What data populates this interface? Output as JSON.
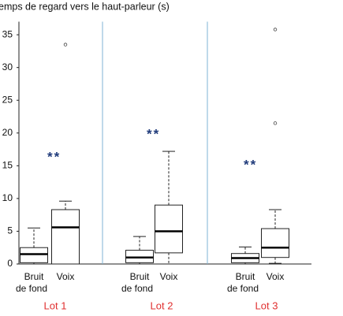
{
  "chart_data": {
    "type": "box",
    "title": "emps de regard vers le haut-parleur (s)",
    "ylim": [
      0,
      37
    ],
    "yticks": [
      0,
      5,
      10,
      15,
      20,
      25,
      30,
      35
    ],
    "groups": [
      {
        "name": "Lot 1",
        "annotation": "**",
        "boxes": [
          {
            "label": [
              "Bruit",
              "de fond"
            ],
            "min": 0,
            "q1": 0.2,
            "median": 1.5,
            "q3": 2.5,
            "max": 5.5,
            "outliers": []
          },
          {
            "label": [
              "Voix"
            ],
            "min": 0,
            "q1": 0,
            "median": 5.6,
            "q3": 8.3,
            "max": 9.6,
            "outliers": [
              33.5
            ]
          }
        ]
      },
      {
        "name": "Lot 2",
        "annotation": "**",
        "boxes": [
          {
            "label": [
              "Bruit",
              "de fond"
            ],
            "min": 0,
            "q1": 0.2,
            "median": 1.0,
            "q3": 2.1,
            "max": 4.2,
            "outliers": []
          },
          {
            "label": [
              "Voix"
            ],
            "min": 0,
            "q1": 1.7,
            "median": 5.0,
            "q3": 9.0,
            "max": 17.2,
            "outliers": []
          }
        ]
      },
      {
        "name": "Lot 3",
        "annotation": "**",
        "boxes": [
          {
            "label": [
              "Bruit",
              "de fond"
            ],
            "min": 0,
            "q1": 0.2,
            "median": 0.9,
            "q3": 1.6,
            "max": 2.6,
            "outliers": []
          },
          {
            "label": [
              "Voix"
            ],
            "min": 0.1,
            "q1": 1.0,
            "median": 2.5,
            "q3": 5.4,
            "max": 8.3,
            "outliers": [
              35.8,
              21.5
            ]
          }
        ]
      }
    ],
    "group_label_color": "#e03030",
    "annotation_color": "#1f3a7a",
    "separator_color": "#7fb3d5"
  }
}
